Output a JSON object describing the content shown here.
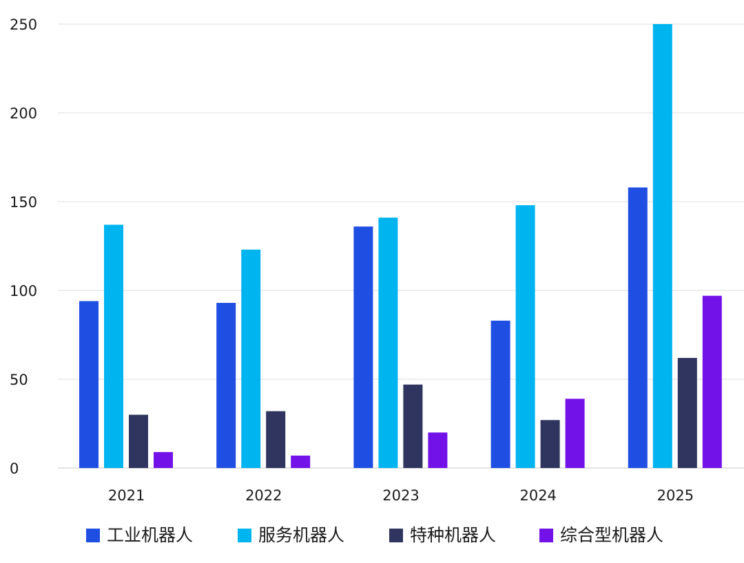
{
  "chart_data": {
    "type": "bar",
    "title": "",
    "xlabel": "",
    "ylabel": "",
    "categories": [
      "2021",
      "2022",
      "2023",
      "2024",
      "2025"
    ],
    "ylim": [
      0,
      250
    ],
    "yticks": [
      0,
      50,
      100,
      150,
      200,
      250
    ],
    "grid": true,
    "legend_position": "bottom",
    "series": [
      {
        "name": "工业机器人",
        "color": "#1f4ee3",
        "values": [
          94,
          93,
          136,
          83,
          158
        ]
      },
      {
        "name": "服务机器人",
        "color": "#00b4f0",
        "values": [
          137,
          123,
          141,
          148,
          250
        ]
      },
      {
        "name": "特种机器人",
        "color": "#2f355e",
        "values": [
          30,
          32,
          47,
          27,
          62
        ]
      },
      {
        "name": "综合型机器人",
        "color": "#7312e8",
        "values": [
          9,
          7,
          20,
          39,
          97
        ]
      }
    ]
  }
}
